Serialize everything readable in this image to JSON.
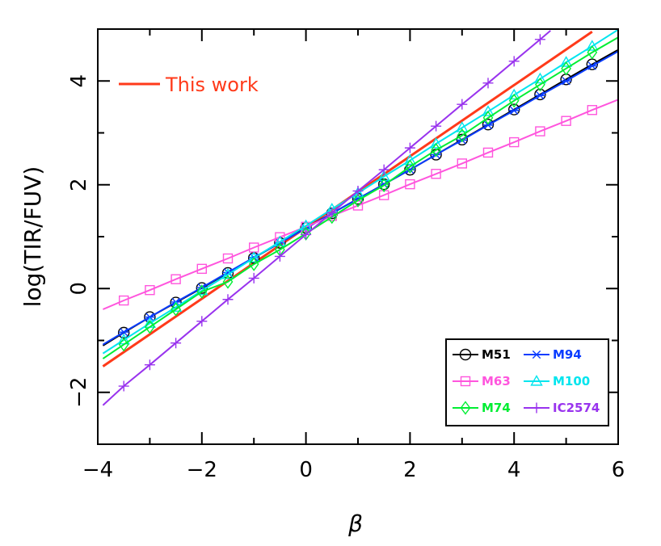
{
  "chart_data": {
    "type": "line",
    "xlabel": "β",
    "ylabel": "log(TIR/FUV)",
    "xlim": [
      -4,
      6
    ],
    "ylim": [
      -3,
      5
    ],
    "xticks": [
      -4,
      -2,
      0,
      2,
      4,
      6
    ],
    "xtick_labels": [
      "−4",
      "−2",
      "0",
      "2",
      "4",
      "6"
    ],
    "yticks": [
      -2,
      0,
      2,
      4
    ],
    "ytick_labels": [
      "−2",
      "0",
      "2",
      "4"
    ],
    "grid": false,
    "annotation": {
      "text": "This work",
      "color": "#ff3a1a"
    },
    "legend_position": "bottom-right",
    "series": [
      {
        "name": "This work",
        "color": "#ff3a1a",
        "marker": "none",
        "legend": false,
        "x": [
          -3.9,
          5.5
        ],
        "y": [
          -1.5,
          4.95
        ]
      },
      {
        "name": "M51",
        "color": "#000000",
        "marker": "circle",
        "x": [
          -3.9,
          -3.5,
          -3.0,
          -2.5,
          -2.0,
          -1.5,
          -1.0,
          -0.5,
          0.0,
          0.5,
          1.0,
          1.5,
          2.0,
          2.5,
          3.0,
          3.5,
          4.0,
          4.5,
          5.0,
          5.5,
          6.0
        ],
        "y": [
          -1.1,
          -0.85,
          -0.55,
          -0.27,
          0.01,
          0.3,
          0.59,
          0.88,
          1.17,
          1.45,
          1.73,
          2.01,
          2.29,
          2.58,
          2.87,
          3.16,
          3.45,
          3.74,
          4.03,
          4.32,
          4.6
        ]
      },
      {
        "name": "M94",
        "color": "#0a3cff",
        "marker": "asterisk",
        "x": [
          -3.9,
          -3.5,
          -3.0,
          -2.5,
          -2.0,
          -1.5,
          -1.0,
          -0.5,
          0.0,
          0.5,
          1.0,
          1.5,
          2.0,
          2.5,
          3.0,
          3.5,
          4.0,
          4.5,
          5.0,
          5.5,
          6.0
        ],
        "y": [
          -1.08,
          -0.84,
          -0.55,
          -0.26,
          0.02,
          0.31,
          0.6,
          0.88,
          1.16,
          1.45,
          1.73,
          2.01,
          2.29,
          2.58,
          2.86,
          3.15,
          3.43,
          3.72,
          4.0,
          4.29,
          4.57
        ]
      },
      {
        "name": "M63",
        "color": "#ff55dd",
        "marker": "square",
        "x": [
          -3.9,
          -3.5,
          -3.0,
          -2.5,
          -2.0,
          -1.5,
          -1.0,
          -0.5,
          0.0,
          0.5,
          1.0,
          1.5,
          2.0,
          2.5,
          3.0,
          3.5,
          4.0,
          4.5,
          5.0,
          5.5,
          6.0
        ],
        "y": [
          -0.4,
          -0.23,
          -0.03,
          0.18,
          0.38,
          0.58,
          0.79,
          0.99,
          1.19,
          1.4,
          1.6,
          1.8,
          2.01,
          2.21,
          2.41,
          2.62,
          2.82,
          3.03,
          3.23,
          3.44,
          3.64
        ]
      },
      {
        "name": "M100",
        "color": "#00e5ee",
        "marker": "triangle",
        "x": [
          -3.9,
          -3.5,
          -3.0,
          -2.5,
          -2.0,
          -1.5,
          -1.0,
          -0.5,
          0.0,
          0.5,
          1.0,
          1.5,
          2.0,
          2.5,
          3.0,
          3.5,
          4.0,
          4.5,
          5.0,
          5.5,
          6.0
        ],
        "y": [
          -1.25,
          -0.99,
          -0.67,
          -0.36,
          -0.04,
          0.27,
          0.59,
          0.9,
          1.21,
          1.53,
          1.84,
          2.16,
          2.47,
          2.79,
          3.1,
          3.41,
          3.73,
          4.04,
          4.36,
          4.67,
          4.99
        ]
      },
      {
        "name": "M74",
        "color": "#00ee33",
        "marker": "diamond",
        "x": [
          -3.9,
          -3.5,
          -3.0,
          -2.5,
          -2.0,
          -1.5,
          -1.0,
          -0.5,
          0.0,
          0.5,
          1.0,
          1.5,
          2.0,
          2.5,
          3.0,
          3.5,
          4.0,
          4.5,
          5.0,
          5.5,
          6.0
        ],
        "y": [
          -1.35,
          -1.08,
          -0.74,
          -0.4,
          -0.06,
          0.13,
          0.47,
          0.75,
          1.06,
          1.38,
          1.7,
          1.99,
          2.35,
          2.67,
          2.95,
          3.29,
          3.62,
          3.93,
          4.24,
          4.55,
          4.84
        ]
      },
      {
        "name": "IC2574",
        "color": "#9933ee",
        "marker": "plus",
        "x": [
          -3.9,
          -3.5,
          -3.0,
          -2.5,
          -2.0,
          -1.5,
          -1.0,
          -0.5,
          0.0,
          0.5,
          1.0,
          1.5,
          2.0,
          2.5,
          3.0,
          3.5,
          4.0,
          4.5,
          4.7
        ],
        "y": [
          -2.25,
          -1.88,
          -1.47,
          -1.05,
          -0.63,
          -0.21,
          0.2,
          0.62,
          1.04,
          1.46,
          1.88,
          2.29,
          2.71,
          3.13,
          3.55,
          3.96,
          4.38,
          4.8,
          4.97
        ]
      }
    ]
  }
}
